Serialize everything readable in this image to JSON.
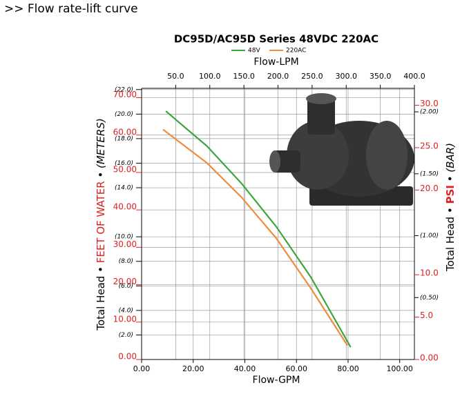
{
  "heading": ">> Flow rate-lift curve",
  "chart_data": {
    "type": "line",
    "title": "DC95D/AC95D Series 48VDC 220AC",
    "xlabel": "Flow-GPM",
    "x2label": "Flow-LPM",
    "ylabel": [
      "Total Head •",
      "FEET OF WATER",
      "• (METERS)"
    ],
    "y2label": [
      "Total Head •",
      "PSI",
      "• (BAR)"
    ],
    "xlim": [
      0,
      105.7
    ],
    "xticks": [
      {
        "value": 0,
        "label": "0.00"
      },
      {
        "value": 20,
        "label": "20.00"
      },
      {
        "value": 40,
        "label": "40.00"
      },
      {
        "value": 60,
        "label": "60.00"
      },
      {
        "value": 80,
        "label": "80.00"
      },
      {
        "value": 100,
        "label": "100.00"
      }
    ],
    "x2lim": [
      0,
      400
    ],
    "x2ticks": [
      {
        "value": 50,
        "label": "50.0"
      },
      {
        "value": 100,
        "label": "100.0"
      },
      {
        "value": 150,
        "label": "150.0"
      },
      {
        "value": 200,
        "label": "200.0"
      },
      {
        "value": 250,
        "label": "250.0"
      },
      {
        "value": 300,
        "label": "300.0"
      },
      {
        "value": 350,
        "label": "350.0"
      },
      {
        "value": 400,
        "label": "400.0"
      }
    ],
    "ylim": [
      0,
      72.5
    ],
    "yticks": [
      {
        "value": 0,
        "label": "0.00"
      },
      {
        "value": 10,
        "label": "10.00"
      },
      {
        "value": 20,
        "label": "20.00"
      },
      {
        "value": 30,
        "label": "30.00"
      },
      {
        "value": 40,
        "label": "40.00"
      },
      {
        "value": 50,
        "label": "50.00"
      },
      {
        "value": 60,
        "label": "60.00"
      },
      {
        "value": 70,
        "label": "70.00"
      }
    ],
    "ymeterslim": [
      0,
      22.1
    ],
    "ymetersticks": [
      {
        "value": 2,
        "label": "(2.0)"
      },
      {
        "value": 4,
        "label": "(4.0)"
      },
      {
        "value": 6,
        "label": "(6.0)"
      },
      {
        "value": 8,
        "label": "(8.0)"
      },
      {
        "value": 10,
        "label": "(10.0)"
      },
      {
        "value": 14,
        "label": "(14.0)"
      },
      {
        "value": 16,
        "label": "(16.0)"
      },
      {
        "value": 18,
        "label": "(18.0)"
      },
      {
        "value": 20,
        "label": "(20.0)"
      },
      {
        "value": 22,
        "label": "(22.0)"
      }
    ],
    "y2lim": [
      0,
      32.0
    ],
    "y2ticks": [
      {
        "value": 0,
        "label": "0.00"
      },
      {
        "value": 5,
        "label": "5.0"
      },
      {
        "value": 10,
        "label": "10.0"
      },
      {
        "value": 20,
        "label": "20.0"
      },
      {
        "value": 25,
        "label": "25.0"
      },
      {
        "value": 30,
        "label": "30.0"
      }
    ],
    "ybarlim": [
      0,
      2.19
    ],
    "ybarticks": [
      {
        "value": 0.5,
        "label": "(0.50)"
      },
      {
        "value": 1.0,
        "label": "(1.00)"
      },
      {
        "value": 1.5,
        "label": "(1.50)"
      },
      {
        "value": 2.0,
        "label": "(2.00)"
      }
    ],
    "grid": true,
    "series": [
      {
        "name": "48V",
        "color": "#3aa63a",
        "x": [
          9.4,
          25.4,
          38.8,
          52.2,
          65.6,
          81
        ],
        "values": [
          66.4,
          57,
          47,
          35.5,
          22,
          3.3
        ]
      },
      {
        "name": "220AC",
        "color": "#f08a3c",
        "x": [
          8.3,
          25.4,
          38.8,
          52.2,
          65.6,
          79.7
        ],
        "values": [
          61.5,
          52.5,
          43.3,
          32.4,
          19,
          3.8
        ]
      }
    ]
  }
}
